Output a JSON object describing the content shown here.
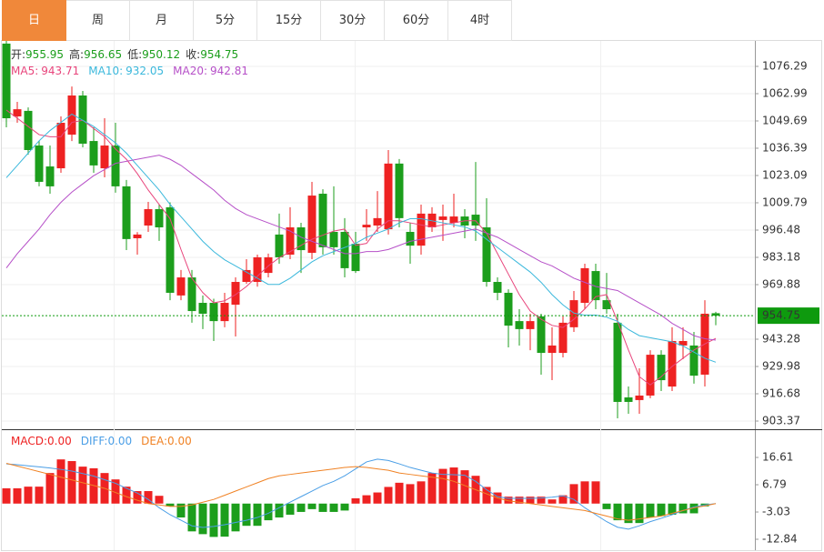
{
  "tabs": [
    "日",
    "周",
    "月",
    "5分",
    "15分",
    "30分",
    "60分",
    "4时"
  ],
  "selected_tab": 0,
  "chart_data": [
    {
      "type": "candlestick",
      "up_color": "#ee2222",
      "down_color": "#1c9e1c",
      "ylim": [
        900.27,
        1088.7
      ],
      "yticks": [
        1076.29,
        1062.99,
        1049.69,
        1036.39,
        1023.09,
        1009.79,
        996.48,
        983.18,
        969.88,
        943.28,
        929.98,
        916.68,
        903.37
      ],
      "grid": true,
      "current_price": 954.75,
      "current_price_color": "#0e9a0e",
      "legend": [
        {
          "label": "开:",
          "value": 955.95
        },
        {
          "label": "高:",
          "value": 956.65
        },
        {
          "label": "低:",
          "value": 950.12
        },
        {
          "label": "收:",
          "value": 954.75
        }
      ],
      "ohlc": [
        [
          1087.4,
          1088.7,
          1046.6,
          1051.0
        ],
        [
          1051.9,
          1059.0,
          1048.8,
          1055.4
        ],
        [
          1054.6,
          1056.3,
          1033.3,
          1035.5
        ],
        [
          1037.7,
          1040.0,
          1017.8,
          1020.0
        ],
        [
          1027.5,
          1037.7,
          1014.2,
          1017.8
        ],
        [
          1026.6,
          1051.9,
          1024.4,
          1048.8
        ],
        [
          1043.0,
          1066.5,
          1039.9,
          1062.1
        ],
        [
          1062.1,
          1064.3,
          1036.8,
          1038.6
        ],
        [
          1039.9,
          1046.6,
          1024.4,
          1028.0
        ],
        [
          1026.6,
          1051.0,
          1022.2,
          1037.7
        ],
        [
          1037.7,
          1048.8,
          1014.7,
          1017.8
        ],
        [
          1017.8,
          1020.9,
          986.7,
          992.1
        ],
        [
          992.5,
          995.5,
          984.5,
          994.3
        ],
        [
          998.7,
          1010.2,
          995.6,
          1006.7
        ],
        [
          1006.7,
          1008.9,
          991.2,
          997.8
        ],
        [
          1007.6,
          1010.0,
          962.3,
          965.9
        ],
        [
          964.6,
          977.0,
          962.3,
          973.4
        ],
        [
          973.4,
          977.0,
          951.3,
          957.0
        ],
        [
          961.0,
          964.6,
          948.2,
          955.7
        ],
        [
          961.0,
          963.0,
          942.4,
          952.1
        ],
        [
          952.1,
          965.9,
          949.1,
          961.0
        ],
        [
          960.1,
          973.4,
          944.6,
          971.2
        ],
        [
          971.2,
          982.3,
          970.3,
          977.0
        ],
        [
          971.2,
          984.5,
          968.9,
          983.2
        ],
        [
          975.6,
          985.0,
          973.4,
          983.2
        ],
        [
          994.3,
          1004.5,
          980.1,
          983.2
        ],
        [
          984.5,
          1007.6,
          982.3,
          997.8
        ],
        [
          997.8,
          1000.0,
          975.6,
          986.7
        ],
        [
          985.4,
          1020.0,
          982.3,
          1013.3
        ],
        [
          1014.2,
          1016.4,
          984.5,
          988.1
        ],
        [
          995.6,
          1017.8,
          984.5,
          988.1
        ],
        [
          995.6,
          1002.3,
          973.4,
          977.9
        ],
        [
          989.8,
          995.6,
          975.6,
          976.5
        ],
        [
          997.8,
          1006.7,
          991.2,
          999.1
        ],
        [
          998.7,
          1015.5,
          995.6,
          1002.3
        ],
        [
          996.9,
          1035.5,
          994.3,
          1028.9
        ],
        [
          1028.9,
          1031.1,
          997.8,
          1002.3
        ],
        [
          995.6,
          1000.0,
          980.1,
          988.9
        ],
        [
          988.9,
          1008.9,
          984.5,
          1004.5
        ],
        [
          997.8,
          1007.6,
          995.6,
          1004.5
        ],
        [
          1001.4,
          1008.9,
          991.2,
          1003.1
        ],
        [
          1000.0,
          1014.2,
          997.8,
          1003.1
        ],
        [
          1003.1,
          1006.7,
          992.5,
          998.7
        ],
        [
          1004.0,
          1029.7,
          991.2,
          998.7
        ],
        [
          997.8,
          1012.0,
          968.9,
          971.2
        ],
        [
          971.2,
          973.4,
          962.3,
          965.9
        ],
        [
          965.9,
          967.6,
          939.3,
          949.9
        ],
        [
          952.1,
          957.9,
          940.2,
          948.2
        ],
        [
          948.2,
          955.7,
          937.9,
          952.1
        ],
        [
          954.4,
          955.7,
          926.0,
          936.6
        ],
        [
          936.6,
          949.1,
          923.3,
          940.2
        ],
        [
          936.6,
          954.4,
          934.4,
          951.3
        ],
        [
          949.1,
          966.8,
          946.8,
          962.3
        ],
        [
          961.0,
          980.1,
          957.9,
          977.9
        ],
        [
          976.5,
          980.1,
          957.9,
          962.3
        ],
        [
          962.3,
          975.6,
          955.7,
          957.9
        ],
        [
          951.3,
          955.7,
          904.7,
          912.7
        ],
        [
          914.9,
          920.2,
          906.9,
          912.7
        ],
        [
          913.6,
          929.1,
          906.9,
          915.8
        ],
        [
          915.8,
          937.9,
          914.5,
          935.7
        ],
        [
          935.7,
          937.9,
          918.0,
          923.3
        ],
        [
          920.2,
          949.1,
          918.0,
          942.4
        ],
        [
          940.2,
          949.1,
          933.5,
          942.4
        ],
        [
          940.2,
          946.8,
          921.6,
          925.5
        ],
        [
          926.0,
          962.3,
          920.2,
          955.7
        ],
        [
          955.95,
          956.65,
          950.12,
          954.75
        ]
      ],
      "series": [
        {
          "name": "MA5:",
          "color": "#e8457c",
          "values": [
            1055,
            1051,
            1047,
            1043,
            1042,
            1042,
            1049,
            1050,
            1046,
            1042,
            1036,
            1031,
            1024,
            1016,
            1009,
            1002,
            987,
            973,
            966,
            961,
            962,
            965,
            969,
            974,
            979,
            983,
            986,
            989,
            992,
            994,
            996,
            997,
            989,
            990,
            997,
            1001,
            1001,
            1000,
            999,
            998,
            999,
            1000,
            1001,
            1001,
            995,
            985,
            975,
            965,
            957,
            953,
            950,
            949,
            953,
            958,
            964,
            965,
            952,
            938,
            925,
            921,
            925,
            930,
            934,
            938,
            941,
            943.71
          ]
        },
        {
          "name": "MA10:",
          "color": "#3bb8dc",
          "values": [
            1022,
            1028,
            1034,
            1040,
            1045,
            1049,
            1053,
            1050,
            1047,
            1043,
            1039,
            1034,
            1028,
            1022,
            1016,
            1009,
            1003,
            997,
            991,
            986,
            982,
            979,
            976,
            973,
            970,
            970,
            973,
            977,
            981,
            984,
            986,
            988,
            990,
            993,
            995,
            997,
            1000,
            1002,
            1002,
            1001,
            1000,
            999,
            998,
            996,
            992,
            988,
            984,
            980,
            976,
            971,
            965,
            960,
            956,
            955,
            955,
            954,
            952,
            948,
            945,
            944,
            943,
            942,
            940,
            937,
            934,
            932.05
          ]
        },
        {
          "name": "MA20:",
          "color": "#b650c8",
          "values": [
            978,
            985,
            991,
            997,
            1004,
            1010,
            1015,
            1019,
            1023,
            1026,
            1029,
            1030,
            1031,
            1032,
            1033,
            1031,
            1028,
            1024,
            1020,
            1016,
            1011,
            1007,
            1004,
            1002,
            1000,
            998,
            996,
            993,
            991,
            989,
            987,
            985,
            985,
            986,
            986,
            987,
            989,
            991,
            992,
            993,
            994,
            995,
            996,
            997,
            995,
            993,
            990,
            987,
            984,
            981,
            979,
            976,
            973,
            971,
            969,
            968,
            967,
            964,
            961,
            958,
            955,
            951,
            948,
            945,
            943.5,
            942.81
          ]
        }
      ]
    },
    {
      "type": "macd",
      "ylim": [
        -16.77,
        25.78
      ],
      "yticks": [
        16.61,
        6.79,
        -3.03,
        -12.84
      ],
      "series": [
        {
          "name": "MACD:",
          "legend_value": "0.00",
          "color": "#ee2222",
          "negative_color": "#1c9e1c",
          "values": [
            5.5,
            5.5,
            6.1,
            6.1,
            11,
            15.9,
            15.3,
            13.3,
            12.7,
            11,
            8.7,
            6.1,
            4.5,
            4.5,
            2.8,
            -1,
            -5,
            -10,
            -11,
            -12,
            -11.9,
            -10,
            -8,
            -8,
            -6,
            -5,
            -4,
            -3,
            -2,
            -3,
            -3,
            -2.5,
            1.9,
            3,
            4,
            6,
            7.5,
            7,
            8,
            11,
            12.5,
            13,
            12,
            10,
            6,
            4,
            2.5,
            2.5,
            2.5,
            2.5,
            1.5,
            3,
            7,
            8,
            8,
            -2,
            -6,
            -7,
            -7,
            -5,
            -4.5,
            -4,
            -3.5,
            -3.5,
            -1,
            0
          ]
        },
        {
          "name": "DIFF:",
          "legend_value": "0.00",
          "color": "#4a9ee6",
          "values": [
            14.3,
            14,
            13.6,
            13.2,
            12.8,
            12.3,
            11.7,
            10.8,
            9.9,
            8.6,
            7.3,
            5.5,
            3.8,
            1.5,
            -1.5,
            -4,
            -6,
            -8,
            -8.6,
            -8.2,
            -7.6,
            -6.8,
            -6,
            -5,
            -3.5,
            -1.5,
            0.5,
            2.5,
            4.5,
            6.5,
            8,
            10,
            12.5,
            15,
            16,
            15.5,
            14.3,
            13,
            12,
            11,
            10.5,
            10.4,
            10.2,
            8,
            5,
            2.5,
            1.9,
            1.9,
            1.9,
            2,
            2.3,
            2.8,
            1.5,
            -1.5,
            -4,
            -6.5,
            -8.5,
            -9.2,
            -8,
            -6.5,
            -5.3,
            -4,
            -2.5,
            -1.2,
            -0.5,
            0
          ]
        },
        {
          "name": "DEA:",
          "legend_value": "0.00",
          "color": "#f08224",
          "values": [
            14.5,
            13.5,
            12.5,
            11.5,
            10.5,
            9.5,
            8.5,
            7.5,
            6.5,
            5.5,
            4,
            2.5,
            1.2,
            0,
            -0.5,
            -1,
            -1,
            -0.5,
            0.5,
            1.5,
            3,
            4.5,
            6,
            7.5,
            9,
            10,
            10.5,
            11,
            11.5,
            12,
            12.5,
            13,
            13.3,
            13,
            12.5,
            12,
            11,
            10.5,
            10,
            9.5,
            9,
            8,
            6.5,
            5,
            3.5,
            2,
            1,
            0.5,
            0,
            -0.5,
            -1,
            -1.5,
            -2,
            -2.5,
            -3.5,
            -4.5,
            -5.5,
            -6,
            -5.5,
            -5,
            -4.5,
            -3.5,
            -2.5,
            -1.5,
            -0.8,
            0
          ]
        }
      ]
    }
  ]
}
